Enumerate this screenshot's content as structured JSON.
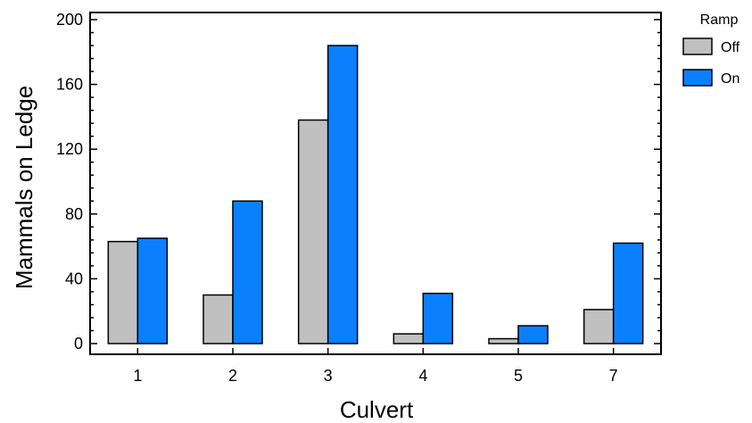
{
  "chart_data": {
    "type": "bar",
    "title": "",
    "xlabel": "Culvert",
    "ylabel": "Mammals on Ledge",
    "categories": [
      "1",
      "2",
      "3",
      "4",
      "5",
      "7"
    ],
    "ylim": [
      -6,
      200
    ],
    "yticks": [
      0,
      40,
      80,
      120,
      160,
      200
    ],
    "grid": false,
    "legend": {
      "title": "Ramp",
      "placement": "top-right-outside"
    },
    "series": [
      {
        "name": "Off",
        "color": "#c0c0c0",
        "values": [
          63,
          30,
          138,
          6,
          3,
          21
        ]
      },
      {
        "name": "On",
        "color": "#0a80ff",
        "values": [
          65,
          88,
          184,
          31,
          11,
          62
        ]
      }
    ]
  }
}
